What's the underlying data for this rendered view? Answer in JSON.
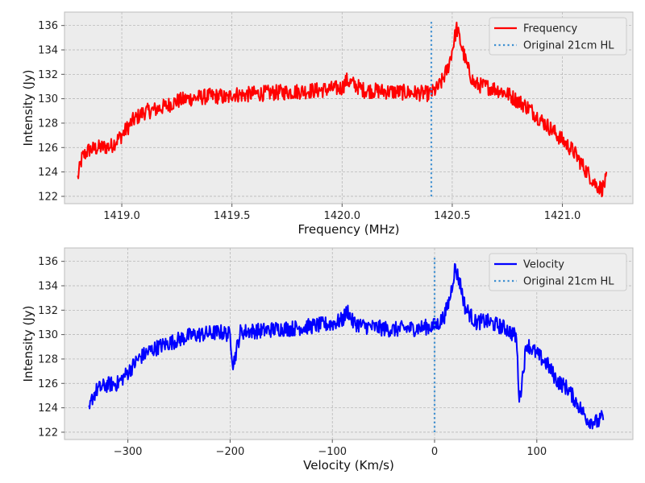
{
  "chart_data": [
    {
      "type": "line",
      "xlabel": "Frequency (MHz)",
      "ylabel": "Intensity (Jy)",
      "xlim": [
        1418.74,
        1421.32
      ],
      "ylim": [
        121.4,
        137.1
      ],
      "xticks": [
        1419.0,
        1419.5,
        1420.0,
        1420.5,
        1421.0
      ],
      "xtick_labels": [
        "1419.0",
        "1419.5",
        "1420.0",
        "1420.5",
        "1421.0"
      ],
      "yticks": [
        122,
        124,
        126,
        128,
        130,
        132,
        134,
        136
      ],
      "ytick_labels": [
        "122",
        "124",
        "126",
        "128",
        "130",
        "132",
        "134",
        "136"
      ],
      "grid": true,
      "legend_position": "top-right",
      "series": [
        {
          "name": "Frequency",
          "color": "#ff0000",
          "style": "solid",
          "x": [
            1418.8,
            1418.82,
            1418.85,
            1418.9,
            1418.95,
            1419.0,
            1419.05,
            1419.1,
            1419.15,
            1419.2,
            1419.25,
            1419.3,
            1419.35,
            1419.4,
            1419.45,
            1419.48,
            1419.5,
            1419.55,
            1419.6,
            1419.7,
            1419.8,
            1419.9,
            1420.0,
            1420.02,
            1420.1,
            1420.2,
            1420.3,
            1420.4,
            1420.43,
            1420.45,
            1420.48,
            1420.5,
            1420.52,
            1420.55,
            1420.57,
            1420.6,
            1420.65,
            1420.7,
            1420.75,
            1420.8,
            1420.85,
            1420.9,
            1420.95,
            1421.0,
            1421.05,
            1421.1,
            1421.15,
            1421.18,
            1421.2
          ],
          "y": [
            123.5,
            125.2,
            125.8,
            126.0,
            126.1,
            127.0,
            128.2,
            128.9,
            129.1,
            129.4,
            129.8,
            130.0,
            130.1,
            130.2,
            130.2,
            130.0,
            130.4,
            130.3,
            130.4,
            130.5,
            130.6,
            130.7,
            130.9,
            131.5,
            130.7,
            130.6,
            130.5,
            130.4,
            130.8,
            131.3,
            132.5,
            134.0,
            135.8,
            133.8,
            132.5,
            131.2,
            131.0,
            130.8,
            130.4,
            129.8,
            129.2,
            128.3,
            127.5,
            126.6,
            125.7,
            124.3,
            123.0,
            122.6,
            123.4
          ]
        },
        {
          "name": "Original 21cm HL",
          "color": "#3d8fd1",
          "style": "dotted",
          "x": [
            1420.405,
            1420.405
          ],
          "y": [
            122.0,
            136.5
          ]
        }
      ]
    },
    {
      "type": "line",
      "xlabel": "Velocity (Km/s)",
      "ylabel": "Intensity (Jy)",
      "xlim": [
        -362,
        194
      ],
      "ylim": [
        121.4,
        137.1
      ],
      "xticks": [
        -300,
        -200,
        -100,
        0,
        100
      ],
      "xtick_labels": [
        "−300",
        "−200",
        "−100",
        "0",
        "100"
      ],
      "yticks": [
        122,
        124,
        126,
        128,
        130,
        132,
        134,
        136
      ],
      "ytick_labels": [
        "122",
        "124",
        "126",
        "128",
        "130",
        "132",
        "134",
        "136"
      ],
      "grid": true,
      "legend_position": "top-right",
      "series": [
        {
          "name": "Velocity",
          "color": "#0000ff",
          "style": "solid",
          "x": [
            -338,
            -335,
            -330,
            -320,
            -310,
            -300,
            -290,
            -280,
            -270,
            -260,
            -250,
            -240,
            -230,
            -220,
            -210,
            -200,
            -197,
            -190,
            -180,
            -170,
            -160,
            -150,
            -140,
            -130,
            -120,
            -110,
            -100,
            -90,
            -85,
            -80,
            -70,
            -60,
            -50,
            -40,
            -30,
            -20,
            -10,
            0,
            5,
            10,
            15,
            20,
            25,
            30,
            40,
            50,
            60,
            70,
            80,
            83,
            90,
            100,
            110,
            120,
            130,
            140,
            150,
            160,
            165
          ],
          "y": [
            123.6,
            124.8,
            125.5,
            125.9,
            126.0,
            126.9,
            128.0,
            128.6,
            129.0,
            129.3,
            129.6,
            129.9,
            130.0,
            130.1,
            130.2,
            130.0,
            127.5,
            130.2,
            130.3,
            130.3,
            130.4,
            130.5,
            130.5,
            130.6,
            130.7,
            130.8,
            130.9,
            131.2,
            132.0,
            131.0,
            130.7,
            130.6,
            130.5,
            130.4,
            130.5,
            130.5,
            130.6,
            130.7,
            131.0,
            131.6,
            133.0,
            135.5,
            134.2,
            132.2,
            131.0,
            131.1,
            130.8,
            130.5,
            129.8,
            124.5,
            129.3,
            128.4,
            127.6,
            126.2,
            125.6,
            124.3,
            123.0,
            122.8,
            123.3
          ]
        },
        {
          "name": "Original 21cm HL",
          "color": "#3d8fd1",
          "style": "dotted",
          "x": [
            0,
            0
          ],
          "y": [
            122.0,
            136.5
          ]
        }
      ]
    }
  ]
}
